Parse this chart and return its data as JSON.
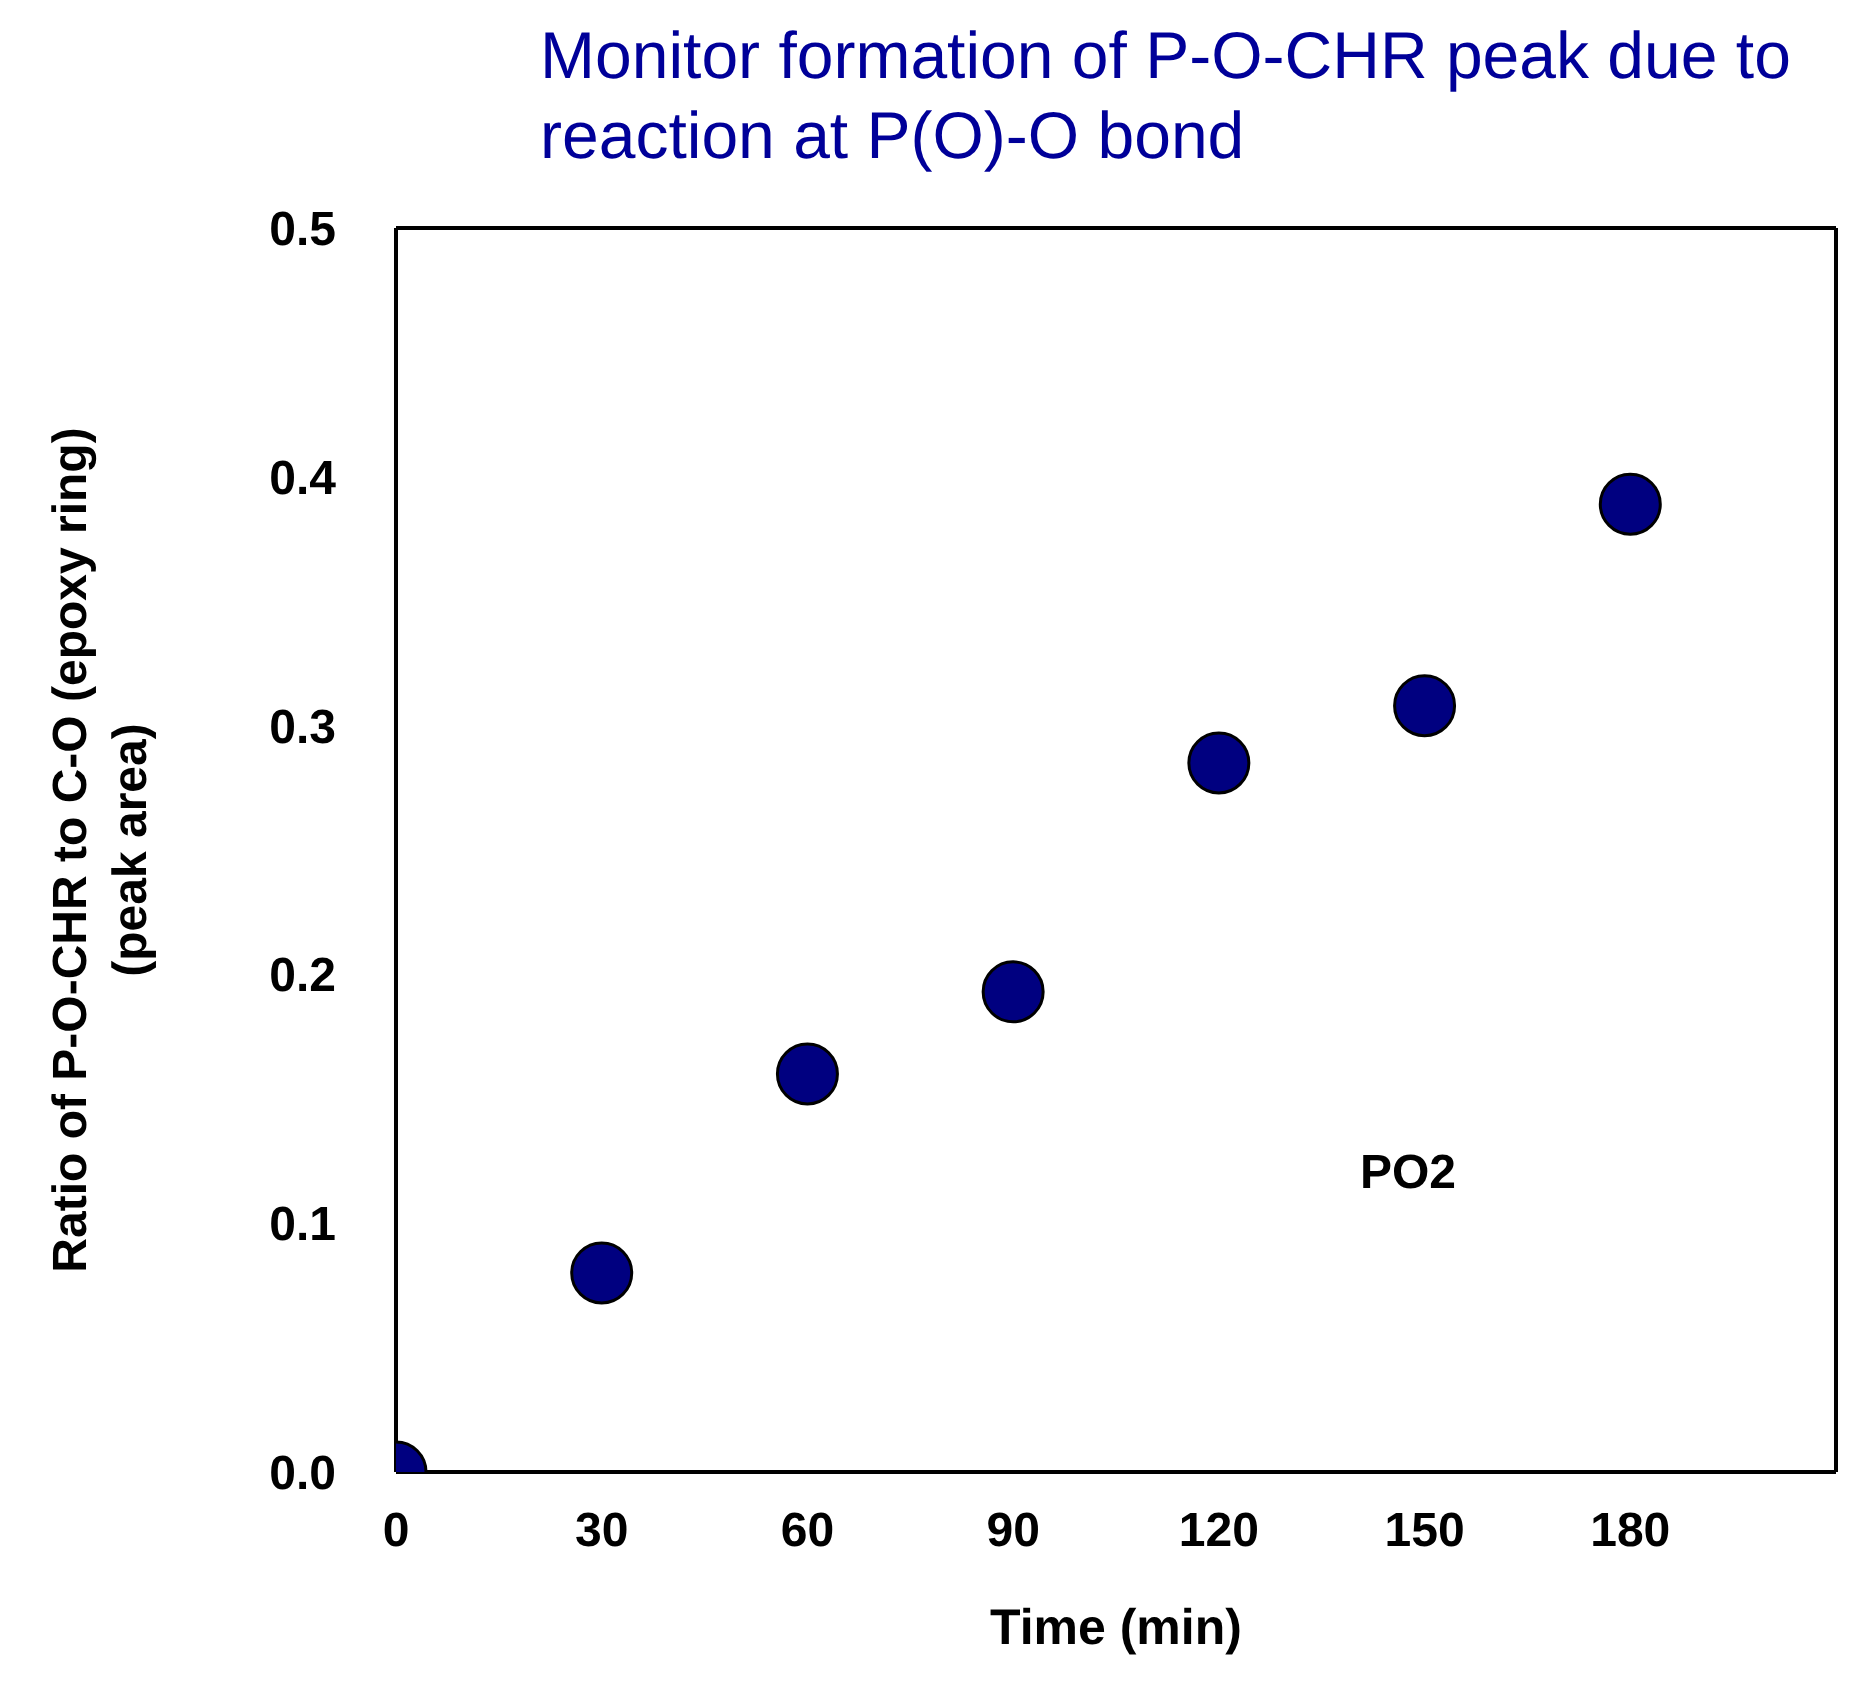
{
  "chart_data": {
    "type": "scatter",
    "title": "Monitor formation of P-O-CHR peak due to reaction at P(O)-O bond",
    "xlabel": "Time (min)",
    "ylabel": [
      "Ratio of P-O-CHR  to C-O (epoxy ring)",
      "(peak area)"
    ],
    "x": [
      0,
      30,
      60,
      90,
      120,
      150,
      180
    ],
    "series": [
      {
        "name": "PO2",
        "color": "#000080",
        "values": [
          0,
          0.08,
          0.16,
          0.193,
          0.285,
          0.308,
          0.389
        ]
      }
    ],
    "xlim": [
      0,
      210
    ],
    "xticks": [
      0,
      30,
      60,
      90,
      120,
      150,
      180
    ],
    "ylim": [
      0,
      0.5
    ],
    "yticks": [
      {
        "value": 0,
        "label": "0.0"
      },
      {
        "value": 0.1,
        "label": "0.1"
      },
      {
        "value": 0.2,
        "label": "0.2"
      },
      {
        "value": 0.3,
        "label": "0.3"
      },
      {
        "value": 0.4,
        "label": "0.4"
      },
      {
        "value": 0.5,
        "label": "0.5"
      }
    ],
    "marker": "circle"
  }
}
